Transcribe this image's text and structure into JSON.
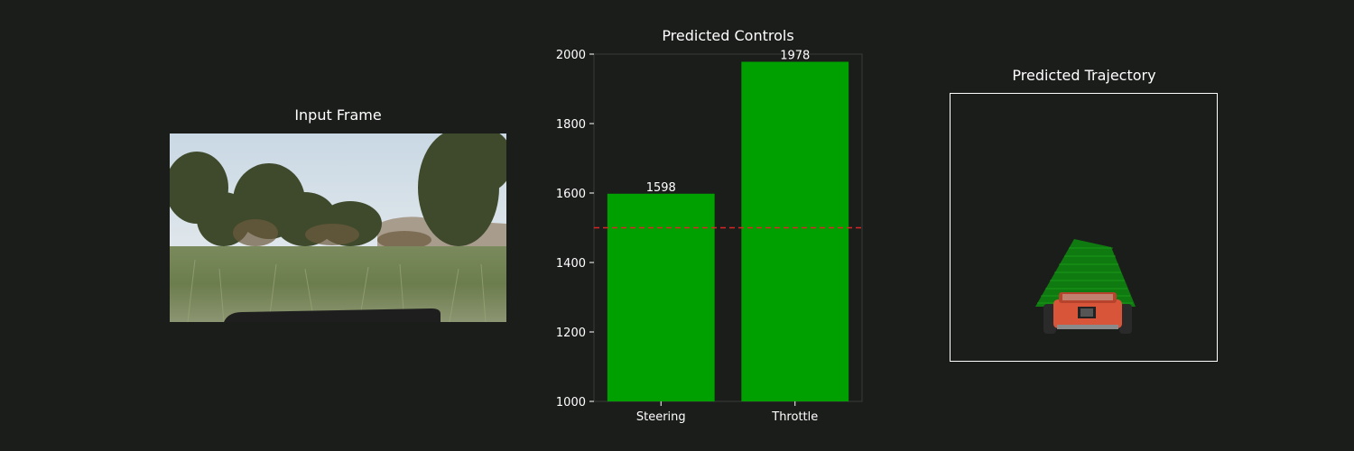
{
  "panels": {
    "input_frame_title": "Input Frame",
    "controls_title": "Predicted Controls",
    "trajectory_title": "Predicted Trajectory"
  },
  "colors": {
    "background": "#1b1d1b",
    "bar": "#00a000",
    "threshold": "#d62728",
    "trajectory": "#1ea01e",
    "car_body": "#d9553a"
  },
  "chart_data": {
    "type": "bar",
    "title": "Predicted Controls",
    "categories": [
      "Steering",
      "Throttle"
    ],
    "values": [
      1598,
      1978
    ],
    "data_labels": [
      "1598",
      "1978"
    ],
    "ylim": [
      1000,
      2000
    ],
    "yticks": [
      1000,
      1200,
      1400,
      1600,
      1800,
      2000
    ],
    "xlabel": "",
    "ylabel": "",
    "reference_line": {
      "y": 1500,
      "style": "dashed"
    },
    "grid": false
  }
}
